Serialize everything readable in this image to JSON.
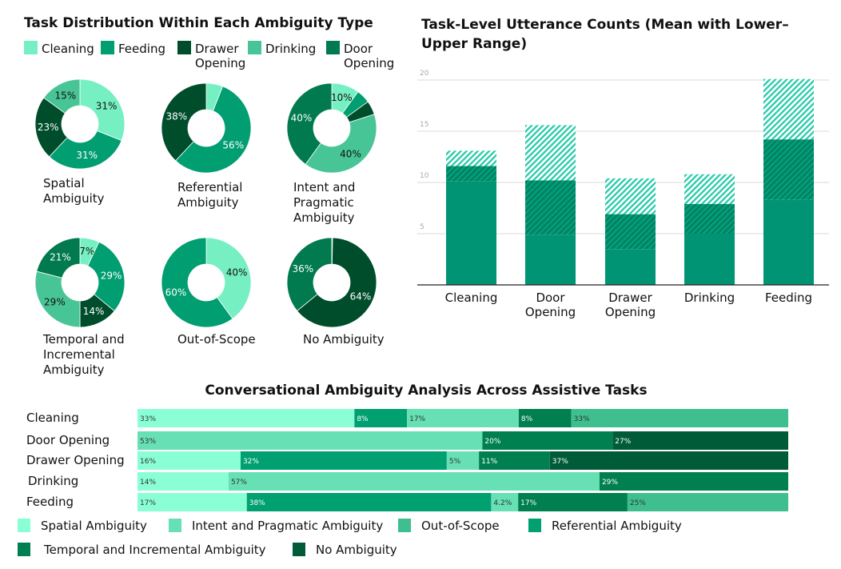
{
  "colors": {
    "cleaning": "#76f0c2",
    "feeding": "#009e70",
    "drawer": "#004d2c",
    "drinking": "#48c597",
    "door": "#007a4e",
    "spatial": "#8affd6",
    "intent": "#66e0b4",
    "out_of_scope": "#3fbf90",
    "referential": "#00a070",
    "temporal": "#008050",
    "none": "#005c38"
  },
  "chart_data": [
    {
      "type": "pie",
      "title": "Task Distribution Within Each Ambiguity Type",
      "style": "donut",
      "legend": [
        {
          "key": "cleaning",
          "name": "Cleaning"
        },
        {
          "key": "feeding",
          "name": "Feeding"
        },
        {
          "key": "drawer",
          "name": "Drawer Opening"
        },
        {
          "key": "drinking",
          "name": "Drinking"
        },
        {
          "key": "door",
          "name": "Door Opening"
        }
      ],
      "legend_placement": "top",
      "charts": [
        {
          "title": "Spatial Ambiguity",
          "slices": [
            {
              "key": "cleaning",
              "value": 31,
              "label": "31%"
            },
            {
              "key": "feeding",
              "value": 31,
              "label": "31%"
            },
            {
              "key": "drawer",
              "value": 23,
              "label": "23%"
            },
            {
              "key": "drinking",
              "value": 15,
              "label": "15%"
            }
          ]
        },
        {
          "title": "Referential Ambiguity",
          "slices": [
            {
              "key": "cleaning",
              "value": 6,
              "label": ""
            },
            {
              "key": "feeding",
              "value": 56,
              "label": "56%"
            },
            {
              "key": "drawer",
              "value": 38,
              "label": "38%"
            }
          ]
        },
        {
          "title": "Intent and Pragmatic Ambiguity",
          "slices": [
            {
              "key": "cleaning",
              "value": 10,
              "label": "10%"
            },
            {
              "key": "feeding",
              "value": 5,
              "label": ""
            },
            {
              "key": "drawer",
              "value": 5,
              "label": ""
            },
            {
              "key": "drinking",
              "value": 40,
              "label": "40%"
            },
            {
              "key": "door",
              "value": 40,
              "label": "40%"
            }
          ]
        },
        {
          "title": "Temporal and Incremental Ambiguity",
          "slices": [
            {
              "key": "cleaning",
              "value": 7,
              "label": "7%"
            },
            {
              "key": "feeding",
              "value": 29,
              "label": "29%"
            },
            {
              "key": "drawer",
              "value": 14,
              "label": "14%"
            },
            {
              "key": "drinking",
              "value": 29,
              "label": "29%"
            },
            {
              "key": "door",
              "value": 21,
              "label": "21%"
            }
          ]
        },
        {
          "title": "Out-of-Scope",
          "slices": [
            {
              "key": "cleaning",
              "value": 40,
              "label": "40%"
            },
            {
              "key": "feeding",
              "value": 60,
              "label": "60%"
            }
          ]
        },
        {
          "title": "No Ambiguity",
          "slices": [
            {
              "key": "cleaning",
              "value": 0.3,
              "label": ""
            },
            {
              "key": "drawer",
              "value": 64,
              "label": "64%"
            },
            {
              "key": "door",
              "value": 36,
              "label": "36%"
            }
          ]
        }
      ]
    },
    {
      "type": "bar",
      "title": "Task-Level Utterance Counts (Mean with Lower– Upper Range)",
      "categories": [
        "Cleaning",
        "Door Opening",
        "Drawer Opening",
        "Drinking",
        "Feeding"
      ],
      "series": [
        {
          "role": "lower",
          "values": [
            10.1,
            4.9,
            3.5,
            5.0,
            8.3
          ]
        },
        {
          "role": "mean",
          "values": [
            11.6,
            10.2,
            6.9,
            7.9,
            14.2
          ]
        },
        {
          "role": "upper",
          "values": [
            13.1,
            15.6,
            10.4,
            10.8,
            20.1
          ]
        }
      ],
      "ylim": [
        0,
        20.5
      ],
      "yticks": [
        5,
        10,
        15,
        20
      ],
      "grid": true
    },
    {
      "type": "bar",
      "orientation": "horizontal",
      "stacked": true,
      "title": "Conversational Ambiguity Analysis Across Assistive Tasks",
      "legend": [
        {
          "key": "spatial",
          "name": "Spatial Ambiguity"
        },
        {
          "key": "intent",
          "name": "Intent and Pragmatic Ambiguity"
        },
        {
          "key": "out_of_scope",
          "name": "Out-of-Scope"
        },
        {
          "key": "referential",
          "name": "Referential Ambiguity"
        },
        {
          "key": "temporal",
          "name": "Temporal and Incremental Ambiguity"
        },
        {
          "key": "none",
          "name": "No Ambiguity"
        }
      ],
      "legend_placement": "bottom",
      "rows": [
        {
          "category": "Cleaning",
          "segments": [
            {
              "key": "spatial",
              "value": 33,
              "label": "33%"
            },
            {
              "key": "referential",
              "value": 8,
              "label": "8%"
            },
            {
              "key": "intent",
              "value": 17,
              "label": "17%"
            },
            {
              "key": "temporal",
              "value": 8,
              "label": "8%"
            },
            {
              "key": "out_of_scope",
              "value": 33,
              "label": "33%"
            }
          ]
        },
        {
          "category": "Door Opening",
          "segments": [
            {
              "key": "intent",
              "value": 53,
              "label": "53%"
            },
            {
              "key": "temporal",
              "value": 20,
              "label": "20%"
            },
            {
              "key": "none",
              "value": 27,
              "label": "27%"
            }
          ]
        },
        {
          "category": "Drawer Opening",
          "segments": [
            {
              "key": "spatial",
              "value": 16,
              "label": "16%"
            },
            {
              "key": "referential",
              "value": 32,
              "label": "32%"
            },
            {
              "key": "intent",
              "value": 5,
              "label": "5%"
            },
            {
              "key": "temporal",
              "value": 11,
              "label": "11%"
            },
            {
              "key": "none",
              "value": 37,
              "label": "37%"
            }
          ]
        },
        {
          "category": "Drinking",
          "segments": [
            {
              "key": "spatial",
              "value": 14,
              "label": "14%"
            },
            {
              "key": "intent",
              "value": 57,
              "label": "57%"
            },
            {
              "key": "temporal",
              "value": 29,
              "label": "29%"
            }
          ]
        },
        {
          "category": "Feeding",
          "segments": [
            {
              "key": "spatial",
              "value": 17,
              "label": "17%"
            },
            {
              "key": "referential",
              "value": 38,
              "label": "38%"
            },
            {
              "key": "intent",
              "value": 4.2,
              "label": "4.2%"
            },
            {
              "key": "temporal",
              "value": 17,
              "label": "17%"
            },
            {
              "key": "out_of_scope",
              "value": 25,
              "label": "25%"
            }
          ]
        }
      ]
    }
  ]
}
